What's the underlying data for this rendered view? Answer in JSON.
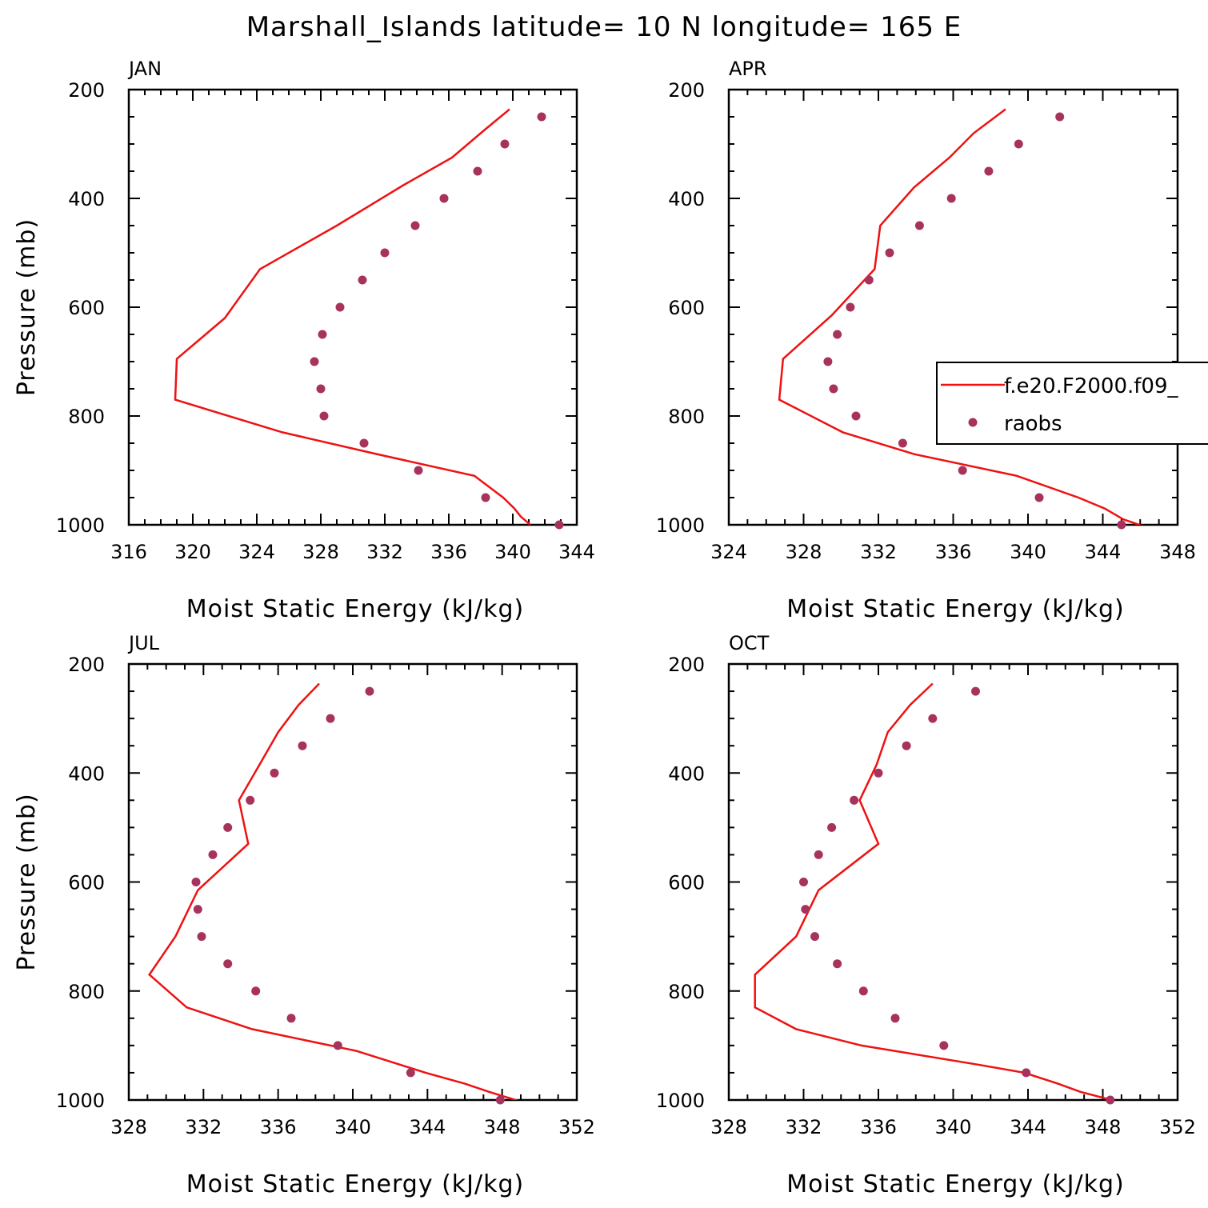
{
  "title": "Marshall_Islands  latitude= 10 N longitude= 165 E",
  "colors": {
    "model": "#ee1111",
    "obs": "#a8325e",
    "axis": "#000000"
  },
  "legend": {
    "model_label": "f.e20.F2000.f09_",
    "obs_label": "raobs"
  },
  "chart_data": [
    {
      "type": "line",
      "panel": "JAN",
      "xlabel": "Moist Static Energy (kJ/kg)",
      "ylabel": "Pressure (mb)",
      "xlim": [
        316,
        344
      ],
      "xticks": [
        316,
        320,
        324,
        328,
        332,
        336,
        340,
        344
      ],
      "ylim": [
        200,
        1000
      ],
      "yticks": [
        200,
        400,
        600,
        800,
        1000
      ],
      "model": {
        "p": [
          236,
          275,
          325,
          375,
          450,
          530,
          620,
          695,
          770,
          830,
          870,
          910,
          950,
          970,
          985,
          1000
        ],
        "mse": [
          339.8,
          338.2,
          336.2,
          333.2,
          329.0,
          324.2,
          322.0,
          319.0,
          318.9,
          325.6,
          331.5,
          337.6,
          339.4,
          340.1,
          340.5,
          341.1
        ]
      },
      "obs": {
        "p": [
          250,
          300,
          350,
          400,
          450,
          500,
          550,
          600,
          650,
          700,
          750,
          800,
          850,
          900,
          950,
          1000
        ],
        "mse": [
          341.8,
          339.5,
          337.8,
          335.7,
          333.9,
          332.0,
          330.6,
          329.2,
          328.1,
          327.6,
          328.0,
          328.2,
          330.7,
          334.1,
          338.3,
          342.9
        ]
      }
    },
    {
      "type": "line",
      "panel": "APR",
      "xlabel": "Moist Static Energy (kJ/kg)",
      "ylabel": "",
      "xlim": [
        324,
        348
      ],
      "xticks": [
        324,
        328,
        332,
        336,
        340,
        344,
        348
      ],
      "ylim": [
        200,
        1000
      ],
      "yticks": [
        200,
        400,
        600,
        800,
        1000
      ],
      "legend": true,
      "model": {
        "p": [
          236,
          280,
          325,
          380,
          450,
          530,
          615,
          695,
          770,
          830,
          870,
          910,
          950,
          970,
          990,
          1003
        ],
        "mse": [
          338.8,
          337.1,
          335.8,
          333.9,
          332.1,
          331.8,
          329.5,
          326.9,
          326.7,
          330.1,
          333.9,
          339.4,
          342.7,
          344.1,
          345.1,
          346.2
        ]
      },
      "obs": {
        "p": [
          250,
          300,
          350,
          400,
          450,
          500,
          550,
          600,
          650,
          700,
          750,
          800,
          850,
          900,
          950,
          1000
        ],
        "mse": [
          341.7,
          339.5,
          337.9,
          335.9,
          334.2,
          332.6,
          331.5,
          330.5,
          329.8,
          329.3,
          329.6,
          330.8,
          333.3,
          336.5,
          340.6,
          345.0
        ]
      }
    },
    {
      "type": "line",
      "panel": "JUL",
      "xlabel": "Moist Static Energy (kJ/kg)",
      "ylabel": "Pressure (mb)",
      "xlim": [
        328,
        352
      ],
      "xticks": [
        328,
        332,
        336,
        340,
        344,
        348,
        352
      ],
      "ylim": [
        200,
        1000
      ],
      "yticks": [
        200,
        400,
        600,
        800,
        1000
      ],
      "model": {
        "p": [
          236,
          275,
          325,
          385,
          450,
          530,
          615,
          700,
          770,
          830,
          870,
          910,
          950,
          970,
          985,
          1003
        ],
        "mse": [
          338.2,
          337.1,
          336.0,
          335.0,
          333.9,
          334.4,
          331.7,
          330.5,
          329.1,
          331.1,
          334.6,
          340.2,
          343.9,
          346.0,
          347.3,
          349.0
        ]
      },
      "obs": {
        "p": [
          250,
          300,
          350,
          400,
          450,
          500,
          550,
          600,
          650,
          700,
          750,
          800,
          850,
          900,
          950,
          1000
        ],
        "mse": [
          340.9,
          338.8,
          337.3,
          335.8,
          334.5,
          333.3,
          332.5,
          331.6,
          331.7,
          331.9,
          333.3,
          334.8,
          336.7,
          339.2,
          343.1,
          347.9
        ]
      }
    },
    {
      "type": "line",
      "panel": "OCT",
      "xlabel": "Moist Static Energy (kJ/kg)",
      "ylabel": "",
      "xlim": [
        328,
        352
      ],
      "xticks": [
        328,
        332,
        336,
        340,
        344,
        348,
        352
      ],
      "ylim": [
        200,
        1000
      ],
      "yticks": [
        200,
        400,
        600,
        800,
        1000
      ],
      "model": {
        "p": [
          236,
          275,
          325,
          385,
          450,
          530,
          615,
          700,
          770,
          830,
          870,
          900,
          935,
          950,
          970,
          985,
          1003
        ],
        "mse": [
          338.9,
          337.7,
          336.5,
          335.9,
          335.0,
          336.0,
          332.8,
          331.6,
          329.4,
          329.4,
          331.6,
          335.1,
          341.3,
          343.8,
          345.6,
          346.8,
          348.8
        ]
      },
      "obs": {
        "p": [
          250,
          300,
          350,
          400,
          450,
          500,
          550,
          600,
          650,
          700,
          750,
          800,
          850,
          900,
          950,
          1000
        ],
        "mse": [
          341.2,
          338.9,
          337.5,
          336.0,
          334.7,
          333.5,
          332.8,
          332.0,
          332.1,
          332.6,
          333.8,
          335.2,
          336.9,
          339.5,
          343.9,
          348.4
        ]
      }
    }
  ]
}
